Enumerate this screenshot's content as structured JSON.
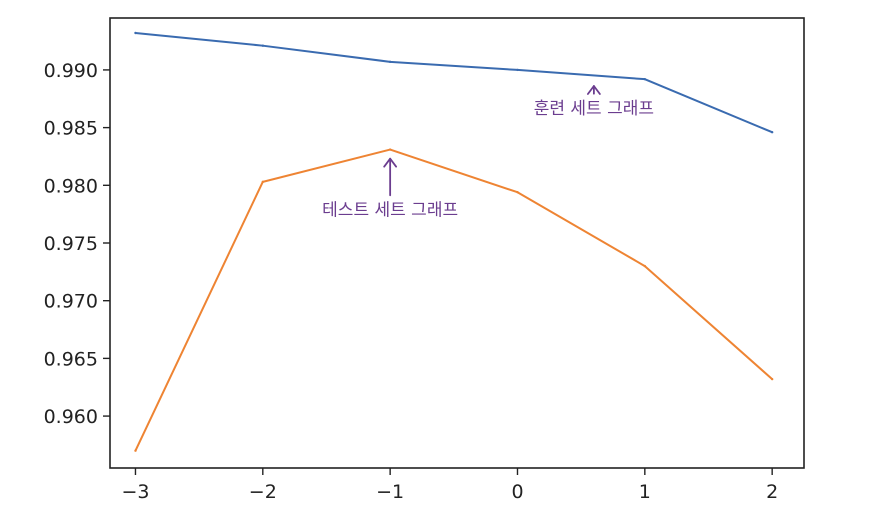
{
  "chart_data": {
    "type": "line",
    "x": [
      -3,
      -2,
      -1,
      0,
      1,
      2
    ],
    "x_tick_labels": [
      "−3",
      "−2",
      "−1",
      "0",
      "1",
      "2"
    ],
    "y_ticks": [
      0.96,
      0.965,
      0.97,
      0.975,
      0.98,
      0.985,
      0.99
    ],
    "y_tick_labels": [
      "0.960",
      "0.965",
      "0.970",
      "0.975",
      "0.980",
      "0.985",
      "0.990"
    ],
    "xlim": [
      -3.2,
      2.25
    ],
    "ylim": [
      0.9555,
      0.9945
    ],
    "grid": false,
    "series": [
      {
        "values": [
          0.9932,
          0.9921,
          0.9907,
          0.99,
          0.9892,
          0.9846
        ],
        "color": "#3a6bb0"
      },
      {
        "values": [
          0.957,
          0.9803,
          0.9831,
          0.9794,
          0.973,
          0.9632
        ],
        "color": "#ee8433"
      }
    ],
    "annotations": [
      {
        "text": "훈련 세트 그래프",
        "x": 0.6,
        "y": 0.9893,
        "text_x": 0.6,
        "text_y": 0.9862,
        "color": "#6b3d8f"
      },
      {
        "text": "테스트 세트 그래프",
        "x": -1.0,
        "y": 0.983,
        "text_x": -1.0,
        "text_y": 0.9774,
        "color": "#6b3d8f"
      }
    ]
  }
}
